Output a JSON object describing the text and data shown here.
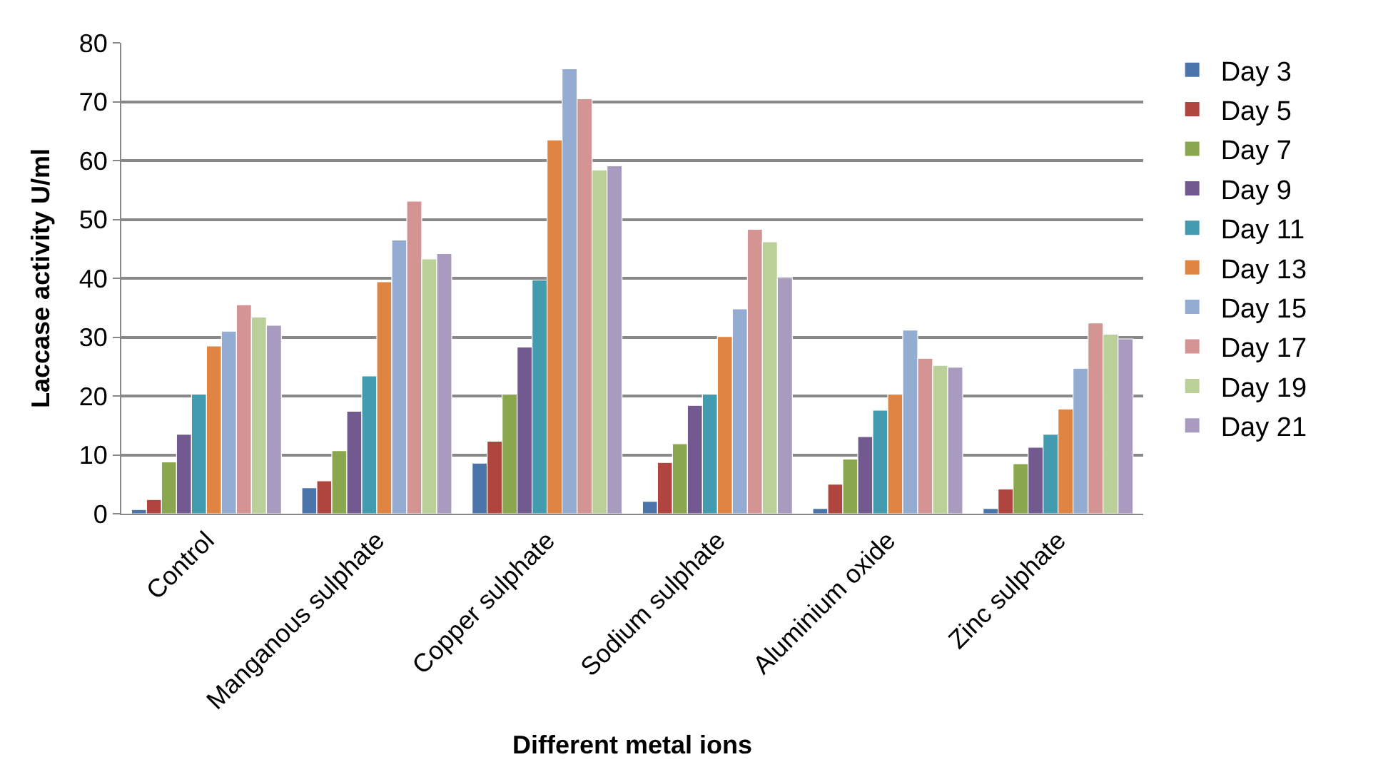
{
  "chart_data": {
    "type": "bar",
    "xlabel": "Different metal ions",
    "ylabel": "Laccase activity U/ml",
    "categories": [
      "Control",
      "Manganous sulphate",
      "Copper sulphate",
      "Sodium sulphate",
      "Aluminium oxide",
      "Zinc sulphate"
    ],
    "series": [
      {
        "name": "Day 3",
        "color": "#4a74aa",
        "values": [
          0.7,
          4.4,
          8.6,
          2.1,
          0.9,
          0.9
        ]
      },
      {
        "name": "Day 5",
        "color": "#b0443f",
        "values": [
          2.4,
          5.6,
          12.3,
          8.7,
          5.0,
          4.2
        ]
      },
      {
        "name": "Day 7",
        "color": "#8aa64e",
        "values": [
          8.8,
          10.7,
          20.3,
          11.9,
          9.3,
          8.5
        ]
      },
      {
        "name": "Day 9",
        "color": "#72598f",
        "values": [
          13.5,
          17.4,
          28.3,
          18.4,
          13.1,
          11.3
        ]
      },
      {
        "name": "Day 11",
        "color": "#439bb0",
        "values": [
          20.3,
          23.4,
          39.7,
          20.3,
          17.6,
          13.5
        ]
      },
      {
        "name": "Day 13",
        "color": "#df8442",
        "values": [
          28.5,
          39.4,
          63.5,
          30.1,
          20.3,
          17.8
        ]
      },
      {
        "name": "Day 15",
        "color": "#95acd2",
        "values": [
          31.0,
          46.5,
          75.6,
          34.8,
          31.2,
          24.7
        ]
      },
      {
        "name": "Day 17",
        "color": "#d49494",
        "values": [
          35.5,
          53.1,
          70.5,
          48.3,
          26.4,
          32.4
        ]
      },
      {
        "name": "Day 19",
        "color": "#bad098",
        "values": [
          33.4,
          43.3,
          58.4,
          46.2,
          25.2,
          30.5
        ]
      },
      {
        "name": "Day 21",
        "color": "#a99bbf",
        "values": [
          32.0,
          44.2,
          59.1,
          40.1,
          24.9,
          29.7
        ]
      }
    ],
    "ylim": [
      0,
      80
    ],
    "yticks": [
      0,
      10,
      20,
      30,
      40,
      50,
      60,
      70,
      80
    ],
    "grid": "y",
    "legend": "right"
  }
}
